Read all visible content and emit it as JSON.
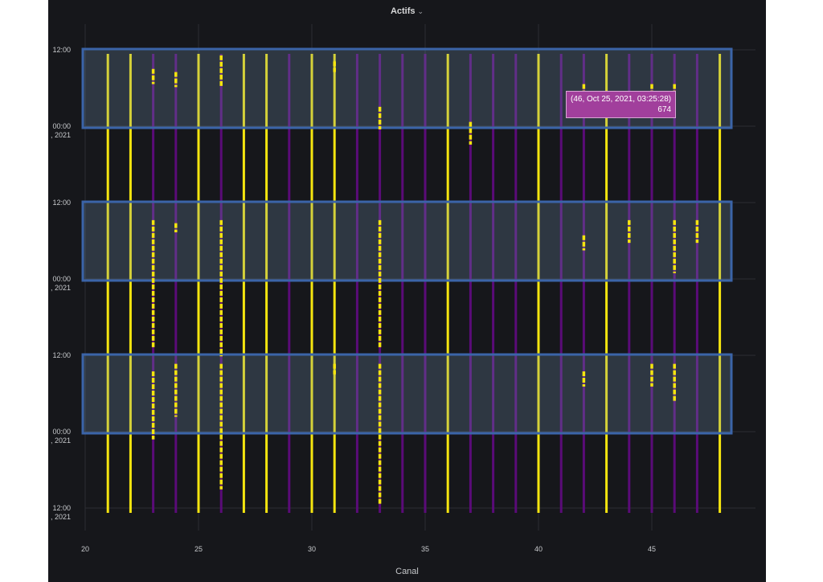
{
  "panel": {
    "title": "Actifs",
    "xlabel": "Canal"
  },
  "tooltip": {
    "line1": "(46, Oct 25, 2021, 03:25:28)",
    "line2": "674"
  },
  "colors": {
    "yellow": "#f5e50f",
    "purple": "#5a0b78",
    "highlight": "#3b64a8",
    "dot_pink": "#c13a7a"
  },
  "chart_data": {
    "type": "scatter",
    "title": "Actifs",
    "xlabel": "Canal",
    "ylabel": "",
    "xlim": [
      19.6,
      49.6
    ],
    "x_ticks": [
      20,
      25,
      30,
      35,
      40,
      45
    ],
    "y_ticks": [
      {
        "label": "12:00",
        "sub": ""
      },
      {
        "label": "00:00",
        "sub": ", 2021"
      },
      {
        "label": "12:00",
        "sub": ""
      },
      {
        "label": "00:00",
        "sub": ", 2021"
      },
      {
        "label": "12:00",
        "sub": ""
      },
      {
        "label": "00:00",
        "sub": ", 2021"
      },
      {
        "label": "12:00",
        "sub": ", 2021"
      }
    ],
    "grid": true,
    "yellow_channels": [
      21,
      22,
      25,
      27,
      28,
      30,
      31,
      36,
      40,
      43,
      48
    ],
    "purple_channels": [
      23,
      24,
      26,
      29,
      32,
      33,
      34,
      35,
      37,
      38,
      39,
      41,
      42,
      44,
      45,
      46,
      47
    ],
    "highlight_bands": 3,
    "series": [
      {
        "values": [
          {
            "x": 23,
            "segments": [
              [
                0.1,
                0.2
              ],
              [
                1.1,
                1.95
              ],
              [
                2.1,
                2.55
              ]
            ]
          },
          {
            "x": 24,
            "segments": [
              [
                0.12,
                0.22
              ],
              [
                1.12,
                1.18
              ],
              [
                2.05,
                2.4
              ]
            ]
          },
          {
            "x": 26,
            "segments": [
              [
                0.01,
                0.22
              ],
              [
                1.1,
                2.0
              ],
              [
                2.05,
                2.88
              ]
            ]
          },
          {
            "x": 31,
            "segments": [
              [
                0.05,
                0.12
              ],
              [
                2.05,
                2.12
              ]
            ]
          },
          {
            "x": 33,
            "segments": [
              [
                0.35,
                0.5
              ],
              [
                1.1,
                1.95
              ],
              [
                2.05,
                2.98
              ]
            ]
          },
          {
            "x": 37,
            "segments": [
              [
                0.45,
                0.6
              ]
            ]
          },
          {
            "x": 42,
            "segments": [
              [
                0.2,
                0.3
              ],
              [
                1.2,
                1.3
              ],
              [
                2.1,
                2.2
              ]
            ]
          },
          {
            "x": 44,
            "segments": [
              [
                1.1,
                1.25
              ]
            ]
          },
          {
            "x": 45,
            "segments": [
              [
                0.2,
                0.3
              ],
              [
                2.05,
                2.2
              ]
            ]
          },
          {
            "x": 46,
            "segments": [
              [
                0.2,
                0.3
              ],
              [
                1.1,
                1.45
              ],
              [
                2.05,
                2.3
              ]
            ]
          },
          {
            "x": 47,
            "segments": [
              [
                1.1,
                1.25
              ]
            ]
          }
        ]
      }
    ]
  }
}
